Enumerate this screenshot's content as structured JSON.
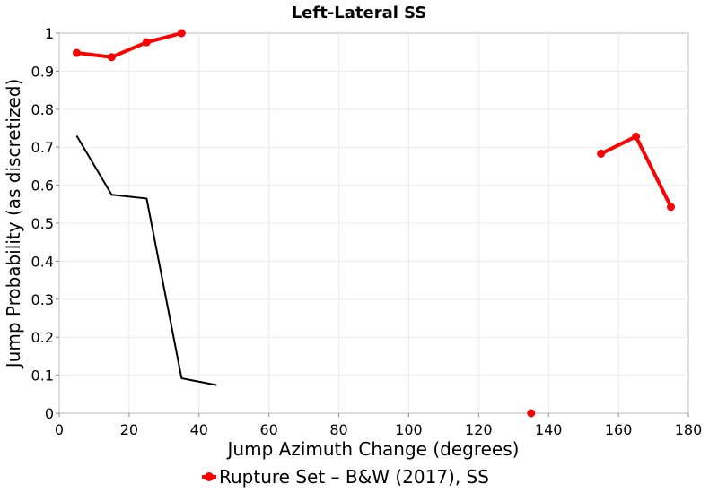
{
  "chart_data": {
    "type": "line",
    "title": "Left-Lateral SS",
    "xlabel": "Jump Azimuth Change (degrees)",
    "ylabel": "Jump Probability (as discretized)",
    "xlim": [
      0,
      180
    ],
    "ylim": [
      0,
      1
    ],
    "xticks": [
      0,
      20,
      40,
      60,
      80,
      100,
      120,
      140,
      160,
      180
    ],
    "yticks": [
      0,
      0.1,
      0.2,
      0.3,
      0.4,
      0.5,
      0.6,
      0.7,
      0.8,
      0.9,
      1
    ],
    "ytick_labels": [
      "0",
      "0.1",
      "0.2",
      "0.3",
      "0.4",
      "0.5",
      "0.6",
      "0.7",
      "0.8",
      "0.9",
      "1"
    ],
    "grid": true,
    "legend_position": "bottom",
    "series": [
      {
        "name": "",
        "color": "#000000",
        "style": "thin-line",
        "segments": [
          [
            [
              5,
              0.73
            ],
            [
              15,
              0.575
            ],
            [
              25,
              0.565
            ],
            [
              35,
              0.092
            ],
            [
              45,
              0.074
            ]
          ]
        ]
      },
      {
        "name": "Rupture Set – B&W (2017), SS",
        "color": "#ff0000",
        "style": "thick-line-markers",
        "segments": [
          [
            [
              5,
              0.948
            ],
            [
              15,
              0.937
            ],
            [
              25,
              0.976
            ],
            [
              35,
              1.0
            ]
          ],
          [
            [
              135,
              0.0
            ]
          ],
          [
            [
              155,
              0.683
            ],
            [
              165,
              0.728
            ],
            [
              175,
              0.543
            ]
          ]
        ]
      }
    ],
    "legend": [
      {
        "label": "Rupture Set – B&W (2017), SS",
        "color": "#ff0000"
      }
    ]
  }
}
